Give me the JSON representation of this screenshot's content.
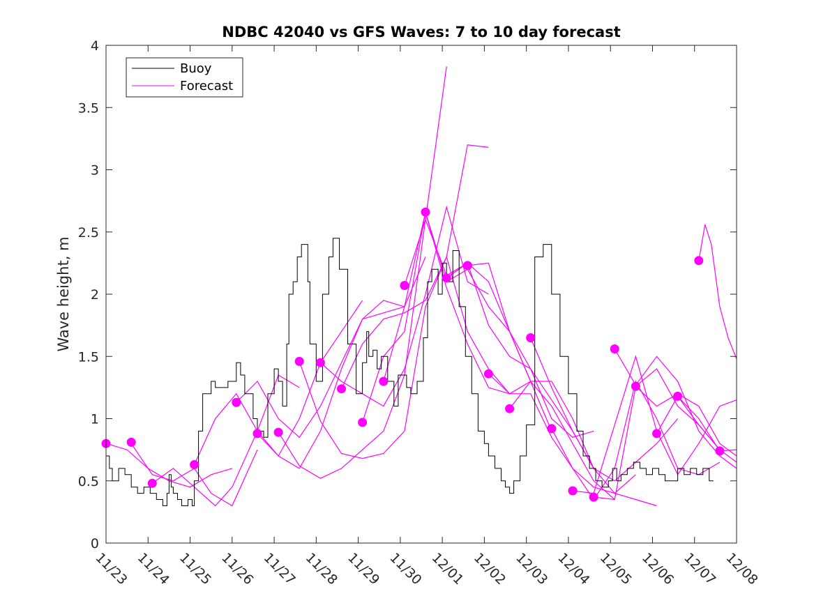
{
  "chart_data": {
    "type": "line",
    "title": "NDBC 42040 vs GFS Waves: 7 to 10 day forecast",
    "xlabel": "",
    "ylabel": "Wave height, m",
    "xlim": [
      0,
      15
    ],
    "ylim": [
      0,
      4
    ],
    "grid": false,
    "legend_position": "top-left",
    "x_tick_labels": [
      "11/23",
      "11/24",
      "11/25",
      "11/26",
      "11/27",
      "11/28",
      "11/29",
      "11/30",
      "12/01",
      "12/02",
      "12/03",
      "12/04",
      "12/05",
      "12/06",
      "12/07",
      "12/08"
    ],
    "y_ticks": [
      0,
      0.5,
      1,
      1.5,
      2,
      2.5,
      3,
      3.5,
      4
    ],
    "y_tick_labels": [
      "0",
      "0.5",
      "1",
      "1.5",
      "2",
      "2.5",
      "3",
      "3.5",
      "4"
    ],
    "colors": {
      "buoy": "#000000",
      "forecast": "#ff00ff"
    },
    "legend": [
      {
        "name": "Buoy",
        "color": "#000000"
      },
      {
        "name": "Forecast",
        "color": "#ff00ff"
      }
    ],
    "buoy": {
      "name": "Buoy",
      "x": [
        0,
        0.08,
        0.15,
        0.3,
        0.45,
        0.6,
        0.75,
        0.9,
        1.05,
        1.2,
        1.35,
        1.45,
        1.5,
        1.55,
        1.6,
        1.7,
        1.8,
        1.95,
        2.05,
        2.1,
        2.2,
        2.3,
        2.5,
        2.6,
        2.9,
        3.1,
        3.2,
        3.3,
        3.5,
        3.6,
        3.75,
        3.85,
        4.0,
        4.1,
        4.2,
        4.3,
        4.35,
        4.45,
        4.55,
        4.65,
        4.8,
        4.85,
        5.0,
        5.15,
        5.3,
        5.4,
        5.55,
        5.75,
        5.95,
        6.1,
        6.2,
        6.25,
        6.35,
        6.45,
        6.55,
        6.7,
        6.85,
        6.95,
        7.15,
        7.25,
        7.4,
        7.55,
        7.65,
        7.75,
        7.9,
        8.0,
        8.1,
        8.25,
        8.4,
        8.55,
        8.7,
        8.85,
        9.0,
        9.1,
        9.25,
        9.4,
        9.5,
        9.6,
        9.7,
        9.85,
        10.0,
        10.2,
        10.4,
        10.6,
        10.8,
        11.0,
        11.2,
        11.35,
        11.5,
        11.65,
        11.8,
        11.95,
        12.05,
        12.15,
        12.25,
        12.4,
        12.55,
        12.7,
        12.85,
        13.0,
        13.15,
        13.3,
        13.5,
        13.6,
        13.75,
        13.9,
        14.05,
        14.2,
        14.35,
        14.45
      ],
      "y": [
        0.7,
        0.6,
        0.5,
        0.6,
        0.55,
        0.45,
        0.4,
        0.45,
        0.4,
        0.35,
        0.3,
        0.4,
        0.55,
        0.45,
        0.4,
        0.35,
        0.3,
        0.35,
        0.3,
        0.5,
        0.9,
        1.2,
        1.3,
        1.25,
        1.3,
        1.45,
        1.35,
        1.2,
        1.0,
        0.9,
        0.85,
        1.2,
        1.4,
        1.3,
        1.1,
        1.6,
        2.0,
        2.1,
        2.3,
        2.4,
        2.1,
        1.6,
        1.3,
        2.0,
        2.3,
        2.45,
        2.2,
        1.6,
        1.2,
        1.45,
        1.7,
        1.5,
        1.55,
        1.4,
        1.5,
        1.3,
        1.1,
        1.35,
        1.25,
        1.2,
        1.3,
        1.65,
        2.1,
        2.2,
        2.0,
        2.25,
        2.1,
        2.35,
        1.9,
        1.5,
        1.2,
        0.9,
        0.8,
        0.7,
        0.6,
        0.5,
        0.45,
        0.4,
        0.5,
        0.7,
        0.95,
        2.3,
        2.4,
        2.0,
        1.5,
        1.2,
        0.9,
        0.7,
        0.6,
        0.5,
        0.45,
        0.5,
        0.6,
        0.5,
        0.55,
        0.6,
        0.65,
        0.6,
        0.55,
        0.6,
        0.55,
        0.5,
        0.5,
        0.6,
        0.55,
        0.6,
        0.55,
        0.6,
        0.5,
        0.5
      ]
    },
    "forecast_series": [
      {
        "name": "Forecast 1",
        "x": [
          0.0,
          0.5,
          1.0,
          1.5,
          2.0,
          2.5,
          3.0
        ],
        "y": [
          0.8,
          0.75,
          0.6,
          0.5,
          0.45,
          0.55,
          0.6
        ]
      },
      {
        "name": "Forecast 2",
        "x": [
          0.6,
          1.1,
          1.6,
          2.1,
          2.5,
          3.0,
          3.6
        ],
        "y": [
          0.8,
          0.55,
          0.5,
          0.6,
          0.4,
          0.3,
          0.75
        ]
      },
      {
        "name": "Forecast 3",
        "x": [
          1.1,
          1.6,
          2.1,
          2.6,
          3.0,
          3.6,
          4.1,
          4.6
        ],
        "y": [
          0.48,
          0.6,
          0.45,
          0.3,
          0.45,
          0.9,
          1.35,
          1.25
        ]
      },
      {
        "name": "Forecast 4",
        "x": [
          2.1,
          2.6,
          3.1,
          3.6,
          4.1,
          4.6,
          5.1,
          5.6,
          6.1
        ],
        "y": [
          0.63,
          1.0,
          1.2,
          0.9,
          0.7,
          1.0,
          1.45,
          1.7,
          1.95
        ]
      },
      {
        "name": "Forecast 5",
        "x": [
          3.1,
          3.6,
          4.1,
          4.6,
          5.1,
          5.6,
          6.1,
          6.6,
          7.1
        ],
        "y": [
          1.13,
          1.3,
          1.0,
          0.85,
          1.1,
          1.45,
          1.8,
          1.95,
          1.9
        ]
      },
      {
        "name": "Forecast 6",
        "x": [
          3.6,
          4.1,
          4.6,
          5.1,
          5.6,
          6.1,
          6.6,
          7.1,
          7.6
        ],
        "y": [
          0.88,
          0.7,
          0.6,
          0.9,
          1.4,
          1.8,
          1.85,
          1.9,
          2.3
        ]
      },
      {
        "name": "Forecast 7",
        "x": [
          4.1,
          4.6,
          5.1,
          5.6,
          6.1,
          6.6,
          7.1,
          7.6,
          8.1
        ],
        "y": [
          0.89,
          0.62,
          0.52,
          0.6,
          0.75,
          0.9,
          1.35,
          2.6,
          3.83
        ]
      },
      {
        "name": "Forecast 8",
        "x": [
          4.6,
          5.1,
          5.6,
          6.1,
          6.6,
          7.1,
          7.6,
          8.1,
          8.6,
          9.1
        ],
        "y": [
          1.46,
          0.98,
          0.72,
          0.68,
          0.72,
          0.9,
          1.9,
          2.3,
          3.2,
          3.18
        ]
      },
      {
        "name": "Forecast 9",
        "x": [
          5.1,
          5.6,
          6.1,
          6.6,
          7.1,
          7.6,
          8.1,
          8.6,
          9.1
        ],
        "y": [
          1.45,
          1.3,
          1.2,
          1.1,
          1.4,
          2.0,
          2.7,
          2.1,
          2.0
        ]
      },
      {
        "name": "Forecast 10",
        "x": [
          5.6,
          6.1,
          6.6,
          7.1,
          7.6,
          8.1,
          8.6,
          9.1,
          9.6
        ],
        "y": [
          1.24,
          1.6,
          1.8,
          1.85,
          1.95,
          2.3,
          1.7,
          1.4,
          1.2
        ]
      },
      {
        "name": "Forecast 11",
        "x": [
          6.1,
          6.6,
          7.1,
          7.6,
          8.1,
          8.6,
          9.1,
          9.6,
          10.1
        ],
        "y": [
          0.97,
          1.5,
          1.7,
          2.66,
          2.05,
          1.6,
          1.25,
          1.2,
          1.3
        ]
      },
      {
        "name": "Forecast 12",
        "x": [
          6.6,
          7.1,
          7.6,
          8.1,
          8.6,
          9.1,
          9.6,
          10.1,
          10.6
        ],
        "y": [
          1.3,
          1.9,
          2.66,
          2.1,
          2.2,
          1.9,
          1.7,
          1.3,
          0.9
        ]
      },
      {
        "name": "Forecast 13",
        "x": [
          7.1,
          7.6,
          8.1,
          8.6,
          9.1,
          9.6,
          10.1,
          10.6,
          11.1,
          11.6
        ],
        "y": [
          2.07,
          2.6,
          2.15,
          2.25,
          2.1,
          1.7,
          1.4,
          1.0,
          0.85,
          0.9
        ]
      },
      {
        "name": "Forecast 14",
        "x": [
          8.1,
          8.6,
          9.1,
          9.6,
          10.1,
          10.6,
          11.1,
          11.6
        ],
        "y": [
          2.13,
          2.25,
          1.75,
          1.5,
          1.4,
          1.15,
          0.9,
          0.6
        ]
      },
      {
        "name": "Forecast 15",
        "x": [
          8.6,
          9.1,
          9.6,
          10.1,
          10.6,
          11.1,
          11.6,
          12.1
        ],
        "y": [
          2.23,
          2.25,
          1.7,
          1.3,
          1.1,
          0.8,
          0.5,
          0.35
        ]
      },
      {
        "name": "Forecast 16",
        "x": [
          9.1,
          9.6,
          10.1,
          10.6,
          11.1,
          11.6,
          12.1,
          12.6
        ],
        "y": [
          1.36,
          1.2,
          1.2,
          0.85,
          0.6,
          0.45,
          0.4,
          0.55
        ]
      },
      {
        "name": "Forecast 17",
        "x": [
          9.6,
          10.1,
          10.6,
          11.1,
          11.6,
          12.1,
          12.6,
          13.1
        ],
        "y": [
          1.08,
          1.3,
          1.3,
          1.0,
          0.6,
          0.4,
          0.35,
          0.3
        ]
      },
      {
        "name": "Forecast 18",
        "x": [
          10.1,
          10.6,
          11.1,
          11.6,
          12.1,
          12.6,
          13.1,
          13.6
        ],
        "y": [
          1.65,
          1.25,
          0.9,
          0.6,
          0.5,
          0.65,
          0.8,
          1.0
        ]
      },
      {
        "name": "Forecast 19",
        "x": [
          10.6,
          11.1,
          11.6,
          12.1,
          12.6,
          13.1,
          13.6,
          14.1,
          14.6
        ],
        "y": [
          0.92,
          0.6,
          0.35,
          0.6,
          1.3,
          1.0,
          0.6,
          0.55,
          0.65
        ]
      },
      {
        "name": "Forecast 20",
        "x": [
          11.1,
          11.6,
          12.1,
          12.6,
          13.1,
          13.6,
          14.1,
          14.6,
          15.0
        ],
        "y": [
          0.42,
          0.4,
          0.95,
          1.5,
          0.9,
          0.55,
          0.8,
          1.1,
          1.15
        ]
      },
      {
        "name": "Forecast 21",
        "x": [
          11.6,
          12.1,
          12.6,
          13.1,
          13.6,
          14.1,
          14.6
        ],
        "y": [
          0.37,
          0.35,
          1.26,
          1.4,
          1.1,
          0.95,
          0.75
        ]
      },
      {
        "name": "Forecast 22",
        "x": [
          12.1,
          12.6,
          13.1,
          13.6,
          14.1,
          14.6,
          15.0
        ],
        "y": [
          1.56,
          1.27,
          1.5,
          1.3,
          0.9,
          0.7,
          0.6
        ]
      },
      {
        "name": "Forecast 23",
        "x": [
          12.6,
          13.1,
          13.6,
          14.1,
          14.6,
          15.0
        ],
        "y": [
          1.26,
          1.1,
          1.2,
          1.1,
          0.8,
          0.7
        ]
      },
      {
        "name": "Forecast 24",
        "x": [
          13.1,
          13.6,
          14.1,
          14.6,
          15.0
        ],
        "y": [
          0.88,
          1.18,
          0.95,
          0.75,
          0.65
        ]
      },
      {
        "name": "Forecast 25",
        "x": [
          13.6,
          14.1,
          14.6,
          15.0
        ],
        "y": [
          1.18,
          1.0,
          0.74,
          0.75
        ]
      },
      {
        "name": "Forecast 26",
        "x": [
          14.1,
          14.25,
          14.4,
          14.6,
          14.8,
          15.0
        ],
        "y": [
          2.27,
          2.56,
          2.4,
          1.9,
          1.65,
          1.48
        ]
      }
    ],
    "forecast_markers": {
      "x": [
        0.0,
        0.6,
        1.1,
        2.1,
        3.1,
        3.6,
        4.1,
        4.6,
        5.1,
        5.6,
        6.1,
        6.6,
        7.1,
        7.6,
        8.1,
        8.6,
        9.1,
        9.6,
        10.1,
        10.6,
        11.1,
        11.6,
        12.1,
        12.6,
        13.1,
        13.6,
        14.1,
        14.6
      ],
      "y": [
        0.8,
        0.81,
        0.48,
        0.63,
        1.13,
        0.88,
        0.89,
        1.46,
        1.45,
        1.24,
        0.97,
        1.3,
        2.07,
        2.66,
        2.13,
        2.23,
        1.36,
        1.08,
        1.65,
        0.92,
        0.42,
        0.37,
        1.56,
        1.26,
        0.88,
        1.18,
        2.27,
        0.74
      ]
    }
  }
}
